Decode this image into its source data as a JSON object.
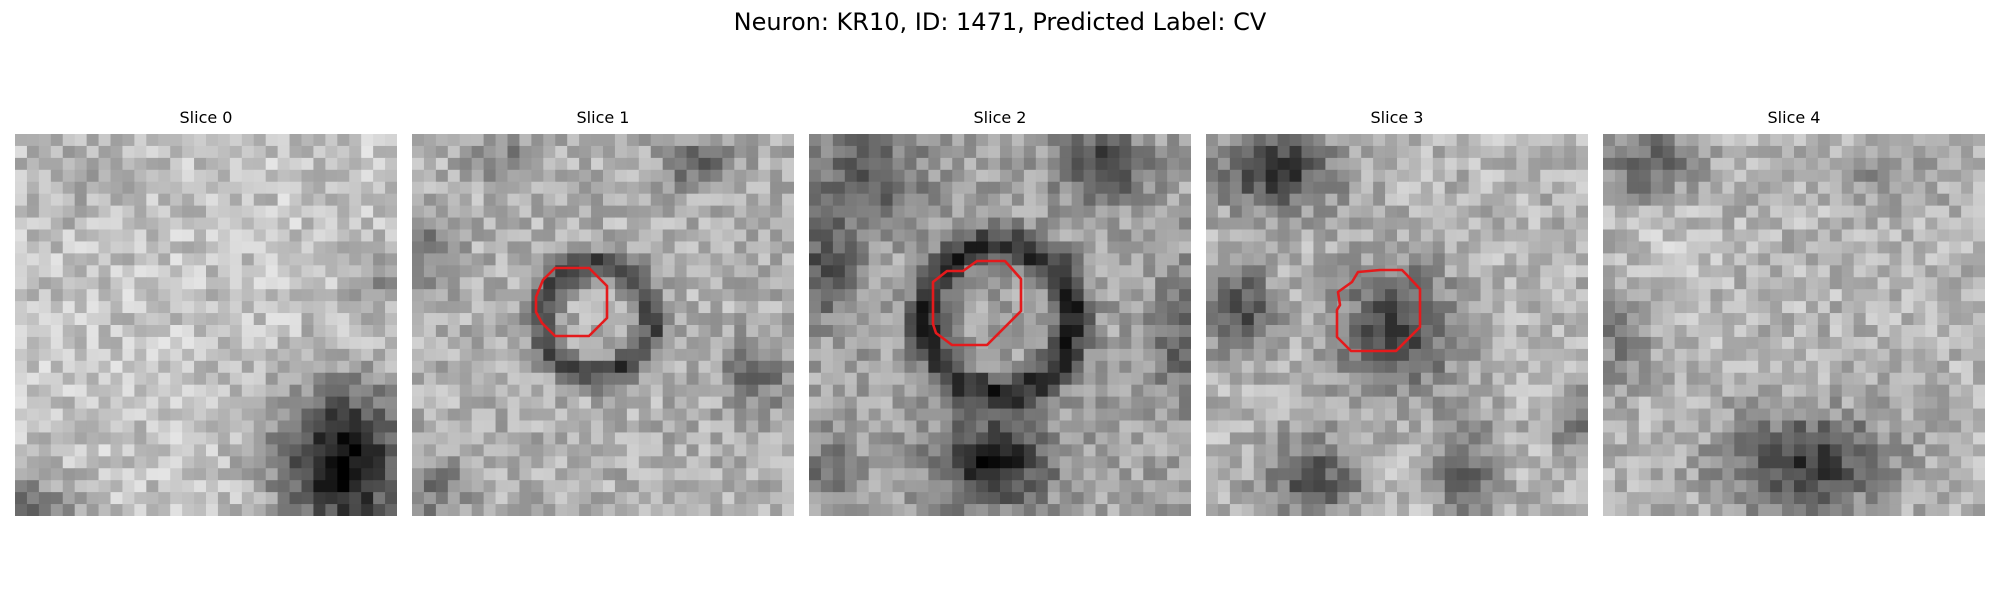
{
  "figure": {
    "title": "Neuron: KR10, ID: 1471, Predicted Label: CV"
  },
  "panels": [
    {
      "title": "Slice 0"
    },
    {
      "title": "Slice 1"
    },
    {
      "title": "Slice 2"
    },
    {
      "title": "Slice 3"
    },
    {
      "title": "Slice 4"
    }
  ],
  "colors": {
    "contour": "#e41a1c",
    "background": "#ffffff"
  }
}
